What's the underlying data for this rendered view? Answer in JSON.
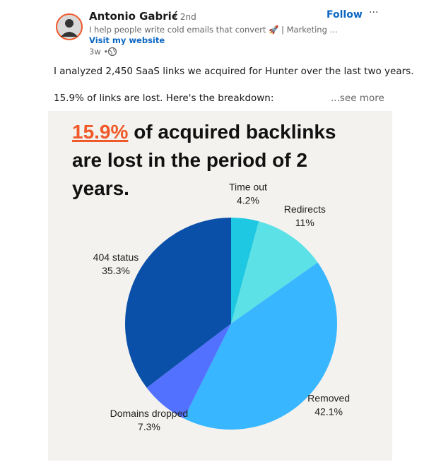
{
  "post": {
    "author": "Antonio Gabrić",
    "degree": "• 2nd",
    "headline": "I help people write cold emails that convert 🚀 | Marketing ...",
    "link": "Visit my website",
    "time": "3w •",
    "follow": "Follow",
    "menu": "···",
    "text_line_1": "I analyzed 2,450 SaaS links we acquired for Hunter over the last two years.",
    "text_line_2": "15.9% of links are lost. Here's the breakdown:",
    "see_more": "...see more"
  },
  "chart_data": {
    "type": "pie",
    "title_highlight": "15.9%",
    "title": "of acquired backlinks are lost in the period of 2 years.",
    "categories": [
      "Time out",
      "Redirects",
      "Removed",
      "Domains dropped",
      "404 status"
    ],
    "values": [
      4.2,
      11,
      42.1,
      7.3,
      35.3
    ],
    "value_labels": [
      "4.2%",
      "11%",
      "42.1%",
      "7.3%",
      "35.3%"
    ],
    "colors": [
      "#1ec8e2",
      "#5ce1e6",
      "#38b6ff",
      "#5271ff",
      "#0a4fa8"
    ]
  }
}
